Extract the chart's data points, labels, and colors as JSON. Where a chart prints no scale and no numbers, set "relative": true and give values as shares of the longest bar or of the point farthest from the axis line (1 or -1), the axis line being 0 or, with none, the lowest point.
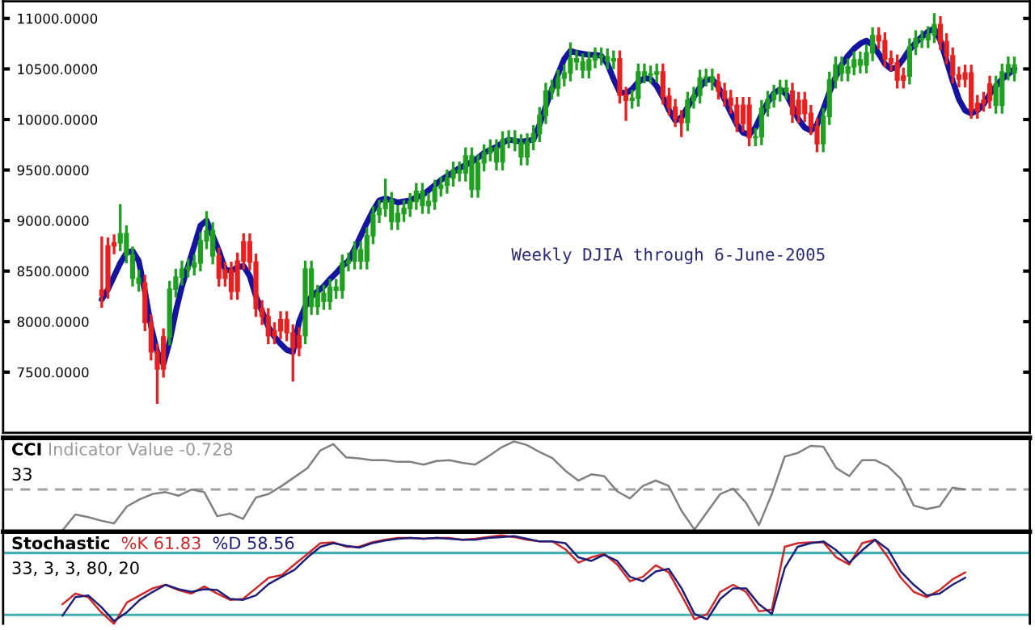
{
  "chart_data": [
    {
      "type": "candlestick",
      "categories": [
        null,
        null,
        null,
        null,
        null,
        null,
        null,
        null,
        null,
        null,
        null,
        null,
        null,
        null,
        null,
        null,
        null,
        null,
        null,
        null,
        null,
        null,
        null,
        null,
        null,
        null,
        null,
        null,
        null,
        null,
        null,
        null,
        null,
        null,
        null,
        null,
        null,
        null,
        null,
        null,
        null,
        null,
        null,
        null,
        null,
        null,
        null,
        null,
        null,
        null,
        null,
        null,
        null,
        null,
        null,
        null,
        null,
        null,
        null,
        null,
        null,
        null,
        null,
        null,
        null,
        null,
        null,
        null,
        null,
        null,
        null,
        null,
        null,
        null,
        null,
        null,
        null,
        null,
        null,
        null,
        null,
        null,
        null,
        null,
        null,
        null,
        null,
        null,
        null,
        null,
        null,
        null,
        null,
        null,
        null,
        null,
        null,
        null,
        null,
        null,
        null,
        null,
        null,
        null,
        null,
        null,
        null,
        null,
        null,
        null,
        null,
        null,
        null,
        null,
        null,
        null,
        null,
        null,
        null,
        null,
        null,
        null,
        null,
        null,
        null,
        null,
        null,
        null,
        null,
        null,
        null,
        null,
        null,
        null,
        null,
        null,
        null,
        null,
        null,
        null,
        null,
        null,
        null,
        null,
        null,
        null,
        null,
        null,
        null
      ],
      "ohlc": [
        [
          8310,
          8830,
          8150,
          8260
        ],
        [
          8750,
          8820,
          8240,
          8310
        ],
        [
          8780,
          8850,
          8680,
          8750
        ],
        [
          8780,
          9150,
          8710,
          8870
        ],
        [
          8660,
          8940,
          8590,
          8870
        ],
        [
          8430,
          8730,
          8360,
          8660
        ],
        [
          8380,
          8500,
          8310,
          8430
        ],
        [
          8380,
          8450,
          7920,
          7990
        ],
        [
          7990,
          8060,
          7630,
          7700
        ],
        [
          7700,
          7770,
          7200,
          7530
        ],
        [
          7850,
          7920,
          7460,
          7530
        ],
        [
          7850,
          8390,
          7780,
          8320
        ],
        [
          8320,
          8510,
          8250,
          8440
        ],
        [
          8440,
          8590,
          8370,
          8520
        ],
        [
          8520,
          8610,
          8450,
          8540
        ],
        [
          8540,
          8650,
          8470,
          8580
        ],
        [
          8580,
          8870,
          8510,
          8800
        ],
        [
          8800,
          9080,
          8730,
          8900
        ],
        [
          8650,
          8970,
          8580,
          8900
        ],
        [
          8650,
          8720,
          8360,
          8430
        ],
        [
          8510,
          8580,
          8360,
          8430
        ],
        [
          8510,
          8580,
          8230,
          8300
        ],
        [
          8600,
          8670,
          8230,
          8300
        ],
        [
          8790,
          8860,
          8530,
          8600
        ],
        [
          8790,
          8860,
          8520,
          8590
        ],
        [
          8590,
          8660,
          8060,
          8130
        ],
        [
          8130,
          8200,
          7980,
          8050
        ],
        [
          8050,
          8120,
          7790,
          7860
        ],
        [
          7910,
          7980,
          7790,
          7860
        ],
        [
          8020,
          8090,
          7840,
          7910
        ],
        [
          8020,
          8090,
          7820,
          7890
        ],
        [
          7890,
          7960,
          7420,
          7740
        ],
        [
          7860,
          7930,
          7670,
          7740
        ],
        [
          7860,
          8590,
          7790,
          8520
        ],
        [
          8150,
          8590,
          8080,
          8520
        ],
        [
          8150,
          8350,
          8080,
          8280
        ],
        [
          8200,
          8350,
          8130,
          8280
        ],
        [
          8200,
          8410,
          8130,
          8340
        ],
        [
          8310,
          8410,
          8240,
          8340
        ],
        [
          8310,
          8650,
          8240,
          8580
        ],
        [
          8580,
          8670,
          8510,
          8600
        ],
        [
          8600,
          8780,
          8530,
          8710
        ],
        [
          8600,
          8780,
          8530,
          8710
        ],
        [
          8600,
          8920,
          8530,
          8850
        ],
        [
          8850,
          9130,
          8780,
          9060
        ],
        [
          9060,
          9190,
          8990,
          9120
        ],
        [
          9120,
          9400,
          9050,
          9200
        ],
        [
          8990,
          9270,
          8920,
          9200
        ],
        [
          8990,
          9140,
          8920,
          9070
        ],
        [
          9070,
          9190,
          9000,
          9120
        ],
        [
          9120,
          9260,
          9050,
          9190
        ],
        [
          9190,
          9360,
          9120,
          9290
        ],
        [
          9150,
          9360,
          9080,
          9290
        ],
        [
          9150,
          9260,
          9080,
          9190
        ],
        [
          9190,
          9390,
          9120,
          9320
        ],
        [
          9320,
          9420,
          9250,
          9350
        ],
        [
          9350,
          9490,
          9280,
          9420
        ],
        [
          9420,
          9570,
          9350,
          9500
        ],
        [
          9470,
          9570,
          9400,
          9500
        ],
        [
          9470,
          9710,
          9400,
          9640
        ],
        [
          9310,
          9710,
          9240,
          9640
        ],
        [
          9310,
          9640,
          9240,
          9570
        ],
        [
          9570,
          9740,
          9500,
          9670
        ],
        [
          9670,
          9790,
          9600,
          9720
        ],
        [
          9580,
          9790,
          9510,
          9720
        ],
        [
          9580,
          9870,
          9510,
          9800
        ],
        [
          9800,
          9880,
          9730,
          9810
        ],
        [
          9770,
          9880,
          9700,
          9810
        ],
        [
          9630,
          9840,
          9560,
          9770
        ],
        [
          9630,
          9850,
          9560,
          9780
        ],
        [
          9780,
          9930,
          9710,
          9860
        ],
        [
          9860,
          10110,
          9790,
          10040
        ],
        [
          10040,
          10350,
          9970,
          10280
        ],
        [
          10280,
          10380,
          10210,
          10310
        ],
        [
          10310,
          10480,
          10240,
          10410
        ],
        [
          10410,
          10530,
          10340,
          10460
        ],
        [
          10460,
          10750,
          10390,
          10600
        ],
        [
          10570,
          10670,
          10500,
          10600
        ],
        [
          10490,
          10640,
          10420,
          10570
        ],
        [
          10490,
          10660,
          10420,
          10590
        ],
        [
          10590,
          10700,
          10520,
          10630
        ],
        [
          10620,
          10700,
          10550,
          10630
        ],
        [
          10580,
          10690,
          10510,
          10620
        ],
        [
          10580,
          10670,
          10510,
          10600
        ],
        [
          10600,
          10670,
          10170,
          10240
        ],
        [
          10240,
          10310,
          10000,
          10190
        ],
        [
          10190,
          10280,
          10120,
          10210
        ],
        [
          10210,
          10540,
          10140,
          10470
        ],
        [
          10440,
          10540,
          10370,
          10470
        ],
        [
          10440,
          10520,
          10370,
          10450
        ],
        [
          10450,
          10540,
          10380,
          10470
        ],
        [
          10470,
          10540,
          10160,
          10230
        ],
        [
          10230,
          10300,
          10050,
          10120
        ],
        [
          10120,
          10190,
          9940,
          10010
        ],
        [
          10010,
          10080,
          9840,
          9970
        ],
        [
          9970,
          10260,
          9900,
          10190
        ],
        [
          10190,
          10310,
          10120,
          10240
        ],
        [
          10240,
          10480,
          10170,
          10410
        ],
        [
          10410,
          10490,
          10340,
          10420
        ],
        [
          10370,
          10490,
          10300,
          10420
        ],
        [
          10370,
          10440,
          10210,
          10280
        ],
        [
          10280,
          10350,
          10140,
          10210
        ],
        [
          10210,
          10280,
          10070,
          10140
        ],
        [
          10140,
          10210,
          9890,
          9960
        ],
        [
          10140,
          10210,
          9890,
          9960
        ],
        [
          10140,
          10210,
          9750,
          9820
        ],
        [
          9820,
          9900,
          9750,
          9830
        ],
        [
          9830,
          10180,
          9760,
          10110
        ],
        [
          10110,
          10270,
          10040,
          10200
        ],
        [
          10200,
          10330,
          10130,
          10260
        ],
        [
          10260,
          10380,
          10190,
          10310
        ],
        [
          10280,
          10380,
          10210,
          10310
        ],
        [
          10280,
          10350,
          9980,
          10050
        ],
        [
          10190,
          10260,
          9980,
          10050
        ],
        [
          10190,
          10260,
          9990,
          10060
        ],
        [
          10060,
          10130,
          9860,
          9930
        ],
        [
          9930,
          10000,
          9690,
          9760
        ],
        [
          9760,
          10100,
          9690,
          10030
        ],
        [
          10030,
          10460,
          9960,
          10390
        ],
        [
          10390,
          10610,
          10320,
          10540
        ],
        [
          10460,
          10610,
          10390,
          10540
        ],
        [
          10460,
          10590,
          10390,
          10520
        ],
        [
          10520,
          10660,
          10450,
          10590
        ],
        [
          10540,
          10660,
          10470,
          10590
        ],
        [
          10540,
          10730,
          10470,
          10660
        ],
        [
          10660,
          10900,
          10590,
          10830
        ],
        [
          10830,
          10900,
          10710,
          10780
        ],
        [
          10780,
          10850,
          10530,
          10600
        ],
        [
          10600,
          10670,
          10490,
          10560
        ],
        [
          10560,
          10630,
          10320,
          10390
        ],
        [
          10430,
          10500,
          10320,
          10390
        ],
        [
          10430,
          10790,
          10360,
          10720
        ],
        [
          10720,
          10870,
          10650,
          10800
        ],
        [
          10790,
          10870,
          10720,
          10800
        ],
        [
          10790,
          10910,
          10720,
          10840
        ],
        [
          10840,
          11040,
          10770,
          10940
        ],
        [
          10940,
          11010,
          10700,
          10770
        ],
        [
          10770,
          10840,
          10560,
          10630
        ],
        [
          10630,
          10700,
          10370,
          10440
        ],
        [
          10440,
          10510,
          10330,
          10400
        ],
        [
          10460,
          10530,
          10330,
          10400
        ],
        [
          10460,
          10530,
          10020,
          10090
        ],
        [
          10160,
          10230,
          10020,
          10090
        ],
        [
          10190,
          10260,
          10090,
          10160
        ],
        [
          10350,
          10420,
          10120,
          10190
        ],
        [
          10140,
          10420,
          10070,
          10350
        ],
        [
          10140,
          10540,
          10070,
          10470
        ],
        [
          10470,
          10610,
          10400,
          10540
        ],
        [
          10460,
          10610,
          10390,
          10540
        ]
      ],
      "colors": [
        "#e82020",
        "#e82020",
        "#e82020",
        "#20a020",
        "#20a020",
        "#20a020",
        "#20a020",
        "#e82020",
        "#e82020",
        "#e82020",
        "#e82020",
        "#20a020",
        "#20a020",
        "#20a020",
        "#20a020",
        "#20a020",
        "#20a020",
        "#20a020",
        "#20a020",
        "#e82020",
        "#e82020",
        "#e82020",
        "#e82020",
        "#e82020",
        "#e82020",
        "#e82020",
        "#e82020",
        "#e82020",
        "#e82020",
        "#e82020",
        "#e82020",
        "#e82020",
        "#e82020",
        "#20a020",
        "#20a020",
        "#20a020",
        "#20a020",
        "#20a020",
        "#20a020",
        "#20a020",
        "#20a020",
        "#20a020",
        "#20a020",
        "#20a020",
        "#20a020",
        "#20a020",
        "#20a020",
        "#20a020",
        "#20a020",
        "#20a020",
        "#20a020",
        "#20a020",
        "#20a020",
        "#20a020",
        "#20a020",
        "#20a020",
        "#20a020",
        "#20a020",
        "#20a020",
        "#20a020",
        "#20a020",
        "#20a020",
        "#20a020",
        "#20a020",
        "#20a020",
        "#20a020",
        "#20a020",
        "#20a020",
        "#20a020",
        "#20a020",
        "#20a020",
        "#20a020",
        "#20a020",
        "#20a020",
        "#20a020",
        "#20a020",
        "#20a020",
        "#20a020",
        "#20a020",
        "#20a020",
        "#20a020",
        "#20a020",
        "#20a020",
        "#20a020",
        "#e82020",
        "#e82020",
        "#20a020",
        "#20a020",
        "#20a020",
        "#20a020",
        "#20a020",
        "#e82020",
        "#e82020",
        "#e82020",
        "#e82020",
        "#20a020",
        "#20a020",
        "#20a020",
        "#20a020",
        "#20a020",
        "#e82020",
        "#e82020",
        "#e82020",
        "#e82020",
        "#e82020",
        "#e82020",
        "#20a020",
        "#20a020",
        "#20a020",
        "#20a020",
        "#20a020",
        "#20a020",
        "#e82020",
        "#e82020",
        "#e82020",
        "#e82020",
        "#e82020",
        "#20a020",
        "#20a020",
        "#20a020",
        "#20a020",
        "#20a020",
        "#20a020",
        "#20a020",
        "#20a020",
        "#20a020",
        "#e82020",
        "#e82020",
        "#e82020",
        "#e82020",
        "#e82020",
        "#20a020",
        "#20a020",
        "#20a020",
        "#20a020",
        "#20a020",
        "#e82020",
        "#e82020",
        "#e82020",
        "#e82020",
        "#e82020",
        "#e82020",
        "#e82020",
        "#e82020",
        "#e82020",
        "#20a020",
        "#20a020",
        "#20a020",
        "#20a020"
      ],
      "series": [
        {
          "type": "line",
          "color": "#1414a0",
          "values": [
            8220,
            8320,
            8450,
            8580,
            8680,
            8700,
            8600,
            8300,
            7950,
            7700,
            7580,
            7800,
            8100,
            8350,
            8550,
            8750,
            8950,
            9000,
            8850,
            8700,
            8520,
            8500,
            8540,
            8550,
            8450,
            8250,
            8100,
            7950,
            7850,
            7780,
            7720,
            7700,
            8000,
            8150,
            8250,
            8300,
            8350,
            8420,
            8480,
            8550,
            8600,
            8720,
            8850,
            8980,
            9100,
            9200,
            9220,
            9200,
            9180,
            9190,
            9200,
            9230,
            9250,
            9300,
            9350,
            9400,
            9440,
            9480,
            9520,
            9550,
            9580,
            9620,
            9670,
            9700,
            9730,
            9770,
            9800,
            9790,
            9780,
            9790,
            9800,
            9950,
            10130,
            10300,
            10450,
            10600,
            10680,
            10660,
            10650,
            10640,
            10640,
            10630,
            10550,
            10400,
            10270,
            10260,
            10300,
            10370,
            10410,
            10400,
            10330,
            10220,
            10090,
            9990,
            10020,
            10120,
            10220,
            10320,
            10390,
            10400,
            10320,
            10200,
            10070,
            9950,
            9870,
            9850,
            9920,
            10050,
            10170,
            10260,
            10300,
            10250,
            10130,
            10000,
            9920,
            9890,
            9950,
            10100,
            10270,
            10420,
            10540,
            10630,
            10700,
            10750,
            10780,
            10740,
            10650,
            10550,
            10500,
            10520,
            10600,
            10690,
            10760,
            10820,
            10870,
            10900,
            10780,
            10580,
            10380,
            10200,
            10090,
            10060,
            10090,
            10150,
            10250,
            10330,
            10400,
            10450,
            10500
          ]
        }
      ],
      "ylim": [
        6900,
        11170
      ],
      "yticks": [
        {
          "value": 7500,
          "label": "7500.0000"
        },
        {
          "value": 8000,
          "label": "8000.0000"
        },
        {
          "value": 8500,
          "label": "8500.0000"
        },
        {
          "value": 9000,
          "label": "9000.0000"
        },
        {
          "value": 9500,
          "label": "9500.0000"
        },
        {
          "value": 10000,
          "label": "10000.0000"
        },
        {
          "value": 10500,
          "label": "10500.0000"
        },
        {
          "value": 11000,
          "label": "11000.0000"
        }
      ],
      "tick_labels": "y",
      "annotations": [
        "Weekly DJIA through 6-June-2005"
      ]
    },
    {
      "type": "line",
      "title": "CCI",
      "subtitle": "Indicator Value -0.728",
      "annotations": [
        "33"
      ],
      "relative": true,
      "tick_labels": false,
      "categories": [
        null,
        null,
        null,
        null,
        null,
        null,
        null,
        null,
        null,
        null,
        null,
        null,
        null,
        null,
        null,
        null,
        null,
        null,
        null,
        null,
        null,
        null,
        null,
        null,
        null,
        null,
        null,
        null,
        null,
        null,
        null,
        null,
        null,
        null,
        null,
        null,
        null,
        null,
        null,
        null,
        null,
        null,
        null,
        null,
        null,
        null,
        null,
        null,
        null,
        null,
        null,
        null,
        null,
        null,
        null,
        null,
        null,
        null,
        null,
        null,
        null,
        null,
        null,
        null,
        null,
        null,
        null,
        null,
        null,
        null,
        null
      ],
      "series": [
        {
          "color": "#808080",
          "values": [
            0.0,
            0.18,
            0.15,
            0.11,
            0.08,
            0.27,
            0.35,
            0.41,
            0.43,
            0.39,
            0.46,
            0.43,
            0.16,
            0.19,
            0.13,
            0.37,
            0.41,
            0.5,
            0.6,
            0.7,
            0.9,
            0.97,
            0.82,
            0.81,
            0.79,
            0.79,
            0.77,
            0.77,
            0.74,
            0.78,
            0.79,
            0.76,
            0.74,
            0.83,
            0.93,
            1.0,
            0.96,
            0.88,
            0.81,
            0.67,
            0.56,
            0.63,
            0.61,
            0.44,
            0.36,
            0.5,
            0.56,
            0.5,
            0.22,
            0.01,
            0.21,
            0.41,
            0.47,
            0.31,
            0.06,
            0.41,
            0.83,
            0.87,
            0.95,
            0.94,
            0.7,
            0.61,
            0.79,
            0.79,
            0.72,
            0.58,
            0.28,
            0.24,
            0.27,
            0.48,
            0.46
          ]
        }
      ],
      "ref_lines": [
        {
          "axis": "y",
          "value": 0.46,
          "label": null,
          "color": "#a0a0a0",
          "line_style": "dashed"
        }
      ]
    },
    {
      "type": "line",
      "title": "Stochastic",
      "annotations": [
        "33, 3, 3, 80, 20"
      ],
      "relative": true,
      "tick_labels": false,
      "categories": [
        null,
        null,
        null,
        null,
        null,
        null,
        null,
        null,
        null,
        null,
        null,
        null,
        null,
        null,
        null,
        null,
        null,
        null,
        null,
        null,
        null,
        null,
        null,
        null,
        null,
        null,
        null,
        null,
        null,
        null,
        null,
        null,
        null,
        null,
        null,
        null,
        null,
        null,
        null,
        null,
        null,
        null,
        null,
        null,
        null,
        null,
        null,
        null,
        null,
        null,
        null,
        null,
        null,
        null,
        null,
        null,
        null,
        null,
        null,
        null,
        null,
        null,
        null,
        null,
        null,
        null,
        null,
        null,
        null,
        null,
        null
      ],
      "series": [
        {
          "name": "%K 61.83",
          "color": "#d02828",
          "values": [
            0.22,
            0.34,
            0.3,
            0.13,
            0.0,
            0.24,
            0.32,
            0.4,
            0.44,
            0.38,
            0.34,
            0.42,
            0.34,
            0.27,
            0.28,
            0.4,
            0.52,
            0.55,
            0.67,
            0.79,
            0.91,
            0.92,
            0.87,
            0.87,
            0.92,
            0.95,
            0.97,
            0.97,
            0.96,
            0.97,
            0.97,
            0.95,
            0.96,
            0.98,
            1.0,
            0.98,
            0.95,
            0.93,
            0.93,
            0.84,
            0.69,
            0.75,
            0.79,
            0.67,
            0.48,
            0.53,
            0.66,
            0.58,
            0.32,
            0.05,
            0.11,
            0.36,
            0.44,
            0.36,
            0.14,
            0.16,
            0.87,
            0.91,
            0.92,
            0.92,
            0.75,
            0.67,
            0.91,
            0.95,
            0.75,
            0.52,
            0.36,
            0.3,
            0.38,
            0.5,
            0.58
          ]
        },
        {
          "name": "%D 58.56",
          "color": "#1e1e78",
          "values": [
            0.09,
            0.3,
            0.32,
            0.19,
            0.03,
            0.13,
            0.27,
            0.36,
            0.44,
            0.39,
            0.36,
            0.39,
            0.38,
            0.28,
            0.27,
            0.32,
            0.45,
            0.53,
            0.61,
            0.75,
            0.87,
            0.91,
            0.88,
            0.86,
            0.91,
            0.94,
            0.96,
            0.97,
            0.96,
            0.97,
            0.96,
            0.95,
            0.95,
            0.97,
            0.98,
            0.99,
            0.96,
            0.93,
            0.93,
            0.91,
            0.75,
            0.71,
            0.78,
            0.71,
            0.53,
            0.48,
            0.59,
            0.62,
            0.4,
            0.11,
            0.05,
            0.28,
            0.4,
            0.4,
            0.22,
            0.11,
            0.63,
            0.87,
            0.91,
            0.93,
            0.83,
            0.69,
            0.83,
            0.95,
            0.84,
            0.59,
            0.44,
            0.32,
            0.34,
            0.44,
            0.52
          ]
        }
      ],
      "ref_lines": [
        {
          "axis": "y",
          "value": 0.8,
          "label": null,
          "color": "#40b0b0"
        },
        {
          "axis": "y",
          "value": 0.1,
          "label": null,
          "color": "#40b0b0"
        }
      ]
    }
  ]
}
